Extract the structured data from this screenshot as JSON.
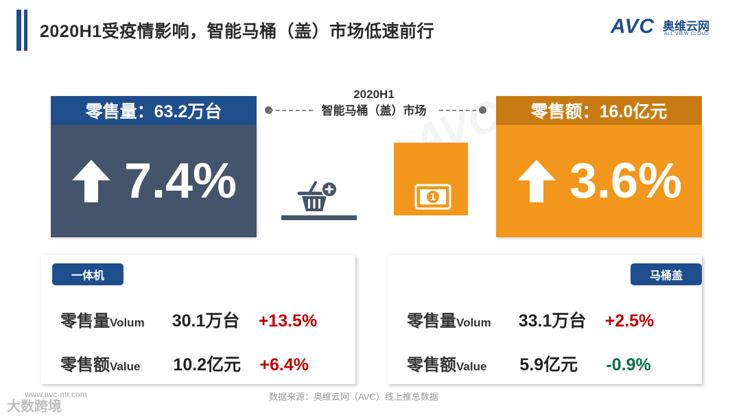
{
  "title": "2020H1受疫情影响，智能马桶（盖）市场低速前行",
  "logo": {
    "avc": "AVC",
    "cn": "奥维云网",
    "en": "ALL VIEW CLOUD"
  },
  "watermark": "AVC",
  "center": {
    "line1": "2020H1",
    "line2": "智能马桶（盖）市场"
  },
  "volume_card": {
    "header": "零售量：63.2万台",
    "pct": "7.4%"
  },
  "value_card": {
    "header": "零售额：16.0亿元",
    "pct": "3.6%"
  },
  "panel_left": {
    "tag": "一体机",
    "rows": [
      {
        "label": "零售量",
        "label_en": "Volum",
        "amount": "30.1万台",
        "change": "+13.5%"
      },
      {
        "label": "零售额",
        "label_en": "Value",
        "amount": "10.2亿元",
        "change": "+6.4%"
      }
    ]
  },
  "panel_right": {
    "tag": "马桶盖",
    "rows": [
      {
        "label": "零售量",
        "label_en": "Volum",
        "amount": "33.1万台",
        "change": "+2.5%"
      },
      {
        "label": "零售额",
        "label_en": "Value",
        "amount": "5.9亿元",
        "change": "-0.9%"
      }
    ]
  },
  "footer": {
    "source": "数据来源：奥维云网（AVC）线上推总数据",
    "url": "www.avc-mr.com",
    "wm": "大数跨境"
  },
  "colors": {
    "navy": "#1f4e8c",
    "slate": "#44546a",
    "orange": "#f2971b",
    "positive": "#c00000",
    "negative": "#00704a"
  },
  "icons": [
    "arrow-up-icon",
    "basket-plus-icon",
    "money-bill-icon"
  ]
}
